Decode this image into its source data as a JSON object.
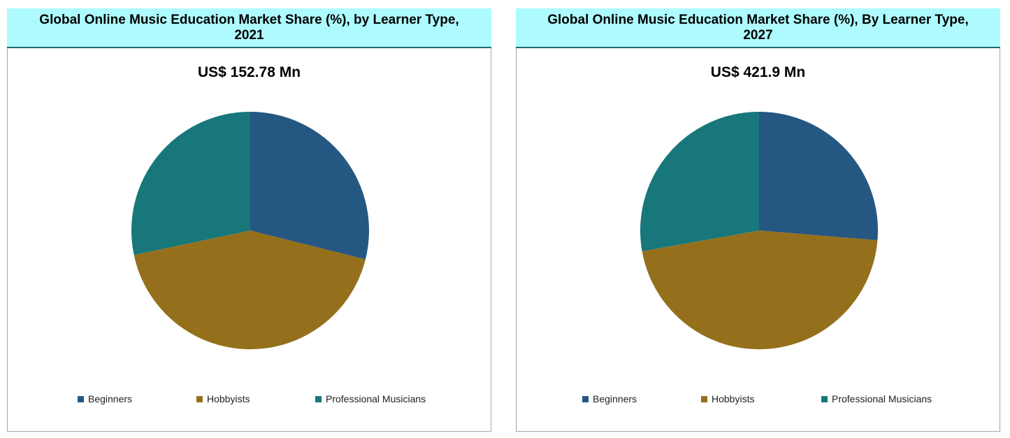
{
  "chart_data": [
    {
      "type": "pie",
      "title": "Global Online Music Education Market Share (%), by Learner Type, 2021",
      "subtitle": "US$ 152.78 Mn",
      "categories": [
        "Beginners",
        "Hobbyists",
        "Professional Musicians"
      ],
      "values": [
        28.9,
        42.8,
        28.3
      ],
      "colors": [
        "#245781",
        "#94701c",
        "#17777a"
      ],
      "legend": "bottom"
    },
    {
      "type": "pie",
      "title": "Global Online Music Education Market Share (%), By Learner Type, 2027",
      "subtitle": "US$ 421.9 Mn",
      "categories": [
        "Beginners",
        "Hobbyists",
        "Professional Musicians"
      ],
      "values": [
        26.3,
        45.9,
        27.8
      ],
      "colors": [
        "#245781",
        "#94701c",
        "#17777a"
      ],
      "legend": "bottom"
    }
  ]
}
